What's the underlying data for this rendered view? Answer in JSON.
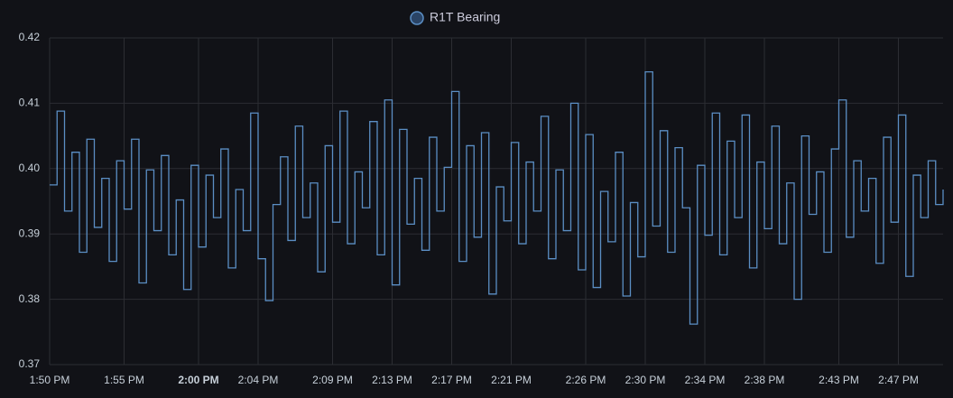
{
  "chart_data": {
    "type": "line",
    "step": true,
    "grid": true,
    "series": [
      {
        "name": "R1T Bearing",
        "color": "#5b8ec4",
        "values": [
          0.3975,
          0.4088,
          0.3935,
          0.4025,
          0.3872,
          0.4045,
          0.391,
          0.3985,
          0.3858,
          0.4012,
          0.3938,
          0.4045,
          0.3825,
          0.3998,
          0.3905,
          0.402,
          0.3868,
          0.3952,
          0.3815,
          0.4005,
          0.388,
          0.399,
          0.3925,
          0.403,
          0.3848,
          0.3968,
          0.3905,
          0.4085,
          0.3862,
          0.3798,
          0.3945,
          0.4018,
          0.389,
          0.4065,
          0.3925,
          0.3978,
          0.3842,
          0.4035,
          0.3918,
          0.4088,
          0.3885,
          0.3995,
          0.394,
          0.4072,
          0.3868,
          0.4105,
          0.3822,
          0.406,
          0.3915,
          0.3985,
          0.3875,
          0.4048,
          0.3935,
          0.4002,
          0.4118,
          0.3858,
          0.4035,
          0.3895,
          0.4055,
          0.3808,
          0.3972,
          0.392,
          0.404,
          0.3885,
          0.401,
          0.3935,
          0.408,
          0.3862,
          0.3998,
          0.3905,
          0.41,
          0.3845,
          0.4052,
          0.3818,
          0.3965,
          0.3888,
          0.4025,
          0.3805,
          0.3948,
          0.3865,
          0.4148,
          0.3912,
          0.4058,
          0.3872,
          0.4032,
          0.394,
          0.3762,
          0.4005,
          0.3898,
          0.4085,
          0.3868,
          0.4042,
          0.3925,
          0.4082,
          0.3848,
          0.401,
          0.3908,
          0.4065,
          0.3885,
          0.3978,
          0.38,
          0.405,
          0.393,
          0.3995,
          0.3872,
          0.403,
          0.4105,
          0.3895,
          0.4012,
          0.3935,
          0.3985,
          0.3855,
          0.4048,
          0.3918,
          0.4082,
          0.3835,
          0.399,
          0.3925,
          0.4012,
          0.3945,
          0.3968
        ]
      }
    ],
    "x": [
      830,
      830.5,
      831,
      831.5,
      832,
      832.5,
      833,
      833.5,
      834,
      834.5,
      835,
      835.5,
      836,
      836.5,
      837,
      837.5,
      838,
      838.5,
      839,
      839.5,
      840,
      840.5,
      841,
      841.5,
      842,
      842.5,
      843,
      843.5,
      844,
      844.5,
      845,
      845.5,
      846,
      846.5,
      847,
      847.5,
      848,
      848.5,
      849,
      849.5,
      850,
      850.5,
      851,
      851.5,
      852,
      852.5,
      853,
      853.5,
      854,
      854.5,
      855,
      855.5,
      856,
      856.5,
      857,
      857.5,
      858,
      858.5,
      859,
      859.5,
      860,
      860.5,
      861,
      861.5,
      862,
      862.5,
      863,
      863.5,
      864,
      864.5,
      865,
      865.5,
      866,
      866.5,
      867,
      867.5,
      868,
      868.5,
      869,
      869.5,
      870,
      870.5,
      871,
      871.5,
      872,
      872.5,
      873,
      873.5,
      874,
      874.5,
      875,
      875.5,
      876,
      876.5,
      877,
      877.5,
      878,
      878.5,
      879,
      879.5,
      880,
      880.5,
      881,
      881.5,
      882,
      882.5,
      883,
      883.5,
      884,
      884.5,
      885,
      885.5,
      886,
      886.5,
      887,
      887.5,
      888,
      888.5,
      889,
      889.5,
      890
    ],
    "xlim": [
      830,
      890
    ],
    "xticks": [
      {
        "value": 830,
        "label": "1:50 PM"
      },
      {
        "value": 835,
        "label": "1:55 PM"
      },
      {
        "value": 840,
        "label": "2:00 PM",
        "bold": true
      },
      {
        "value": 844,
        "label": "2:04 PM"
      },
      {
        "value": 849,
        "label": "2:09 PM"
      },
      {
        "value": 853,
        "label": "2:13 PM"
      },
      {
        "value": 857,
        "label": "2:17 PM"
      },
      {
        "value": 861,
        "label": "2:21 PM"
      },
      {
        "value": 866,
        "label": "2:26 PM"
      },
      {
        "value": 870,
        "label": "2:30 PM"
      },
      {
        "value": 874,
        "label": "2:34 PM"
      },
      {
        "value": 878,
        "label": "2:38 PM"
      },
      {
        "value": 883,
        "label": "2:43 PM"
      },
      {
        "value": 887,
        "label": "2:47 PM"
      }
    ],
    "ylim": [
      0.37,
      0.42
    ],
    "yticks": [
      0.37,
      0.38,
      0.39,
      {
        "value": 0.4,
        "label": "0.40"
      },
      0.41,
      0.42
    ]
  }
}
